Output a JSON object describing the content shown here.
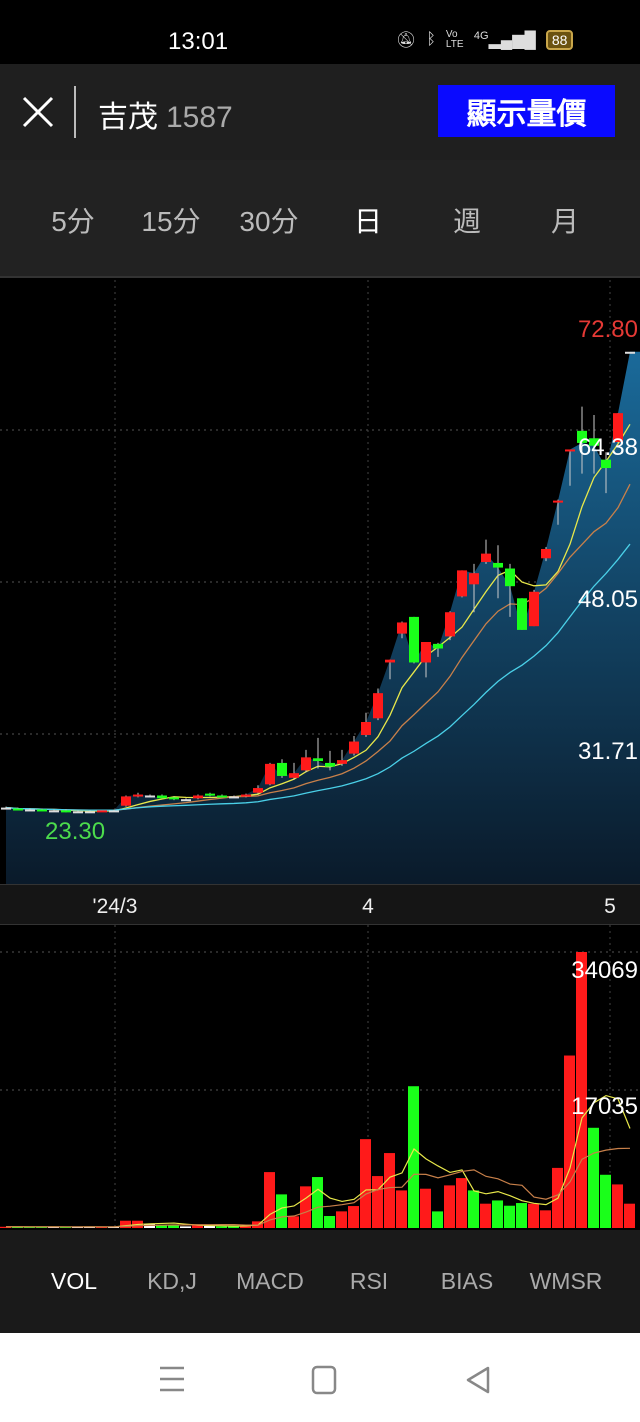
{
  "status_bar": {
    "time": "13:01",
    "battery": "88",
    "network": "4G",
    "volte": "Vo LTE"
  },
  "header": {
    "stock_name": "吉茂",
    "stock_code": "1587",
    "show_button": "顯示量價"
  },
  "periods": {
    "items": [
      "5分",
      "15分",
      "30分",
      "日",
      "週",
      "月"
    ],
    "selected": "日"
  },
  "price_labels": {
    "high": "72.80",
    "grid_top": "64.38",
    "grid_mid": "48.05",
    "grid_low": "31.71",
    "low": "23.30"
  },
  "date_labels": [
    "'24/3",
    "4",
    "5"
  ],
  "volume_labels": {
    "max": "34069",
    "mid": "17035"
  },
  "indicator_tabs": {
    "items": [
      "VOL",
      "KD,J",
      "MACD",
      "RSI",
      "BIAS",
      "WMSR"
    ],
    "selected": "VOL"
  },
  "colors": {
    "up": "#ff1a1a",
    "down": "#1aff1a",
    "neutral": "#ffffff",
    "ma5": "#e8e84a",
    "ma10": "#c8804a",
    "ma20": "#4ad0e8",
    "button": "#0a0aff",
    "high_label": "#e53935",
    "low_label": "#4cdc4c"
  },
  "chart_data": [
    {
      "type": "candlestick",
      "title": "",
      "ylim": [
        23.3,
        72.8
      ],
      "y_ticks": [
        31.71,
        48.05,
        64.38
      ],
      "x_ticks": [
        "'24/3",
        "4",
        "5"
      ],
      "moving_averages": [
        "ma5",
        "ma10",
        "ma20"
      ],
      "ohlc": [
        [
          23.8,
          23.9,
          23.7,
          23.8
        ],
        [
          23.7,
          23.8,
          23.6,
          23.6
        ],
        [
          23.6,
          23.7,
          23.5,
          23.6
        ],
        [
          23.6,
          23.7,
          23.5,
          23.5
        ],
        [
          23.5,
          23.6,
          23.4,
          23.5
        ],
        [
          23.5,
          23.6,
          23.3,
          23.4
        ],
        [
          23.4,
          23.5,
          23.3,
          23.4
        ],
        [
          23.4,
          23.5,
          23.3,
          23.4
        ],
        [
          23.4,
          23.5,
          23.4,
          23.5
        ],
        [
          23.5,
          23.6,
          23.4,
          23.5
        ],
        [
          24.0,
          25.1,
          23.9,
          25.0
        ],
        [
          25.0,
          25.4,
          24.9,
          25.2
        ],
        [
          25.1,
          25.2,
          25.0,
          25.1
        ],
        [
          25.1,
          25.2,
          24.8,
          24.8
        ],
        [
          24.9,
          25.0,
          24.6,
          24.7
        ],
        [
          24.7,
          24.8,
          24.6,
          24.7
        ],
        [
          24.8,
          25.2,
          24.7,
          25.1
        ],
        [
          25.3,
          25.4,
          25.0,
          25.1
        ],
        [
          25.1,
          25.2,
          24.9,
          25.0
        ],
        [
          25.0,
          25.1,
          24.9,
          25.0
        ],
        [
          25.0,
          25.3,
          24.9,
          25.2
        ],
        [
          25.4,
          26.2,
          25.3,
          25.9
        ],
        [
          26.3,
          28.6,
          26.2,
          28.5
        ],
        [
          28.6,
          29.0,
          27.0,
          27.2
        ],
        [
          27.0,
          28.6,
          26.8,
          27.5
        ],
        [
          27.8,
          30.0,
          27.6,
          29.2
        ],
        [
          29.1,
          31.3,
          28.0,
          28.8
        ],
        [
          28.6,
          29.9,
          27.8,
          28.2
        ],
        [
          28.5,
          30.0,
          28.3,
          28.9
        ],
        [
          29.6,
          31.5,
          29.4,
          30.9
        ],
        [
          31.6,
          34.0,
          31.4,
          33.0
        ],
        [
          33.4,
          36.6,
          33.2,
          36.1
        ],
        [
          39.4,
          39.7,
          37.6,
          39.7
        ],
        [
          42.5,
          43.8,
          42.0,
          43.7
        ],
        [
          44.3,
          44.3,
          39.3,
          39.4
        ],
        [
          39.4,
          41.6,
          37.8,
          41.6
        ],
        [
          41.4,
          41.5,
          40.0,
          40.9
        ],
        [
          42.2,
          44.9,
          41.8,
          44.8
        ],
        [
          46.5,
          49.3,
          46.4,
          49.3
        ],
        [
          47.8,
          50.0,
          44.8,
          49.0
        ],
        [
          50.2,
          52.6,
          50.0,
          51.1
        ],
        [
          50.1,
          52.0,
          46.3,
          49.6
        ],
        [
          49.5,
          50.0,
          44.3,
          47.6
        ],
        [
          46.3,
          46.3,
          42.9,
          42.9
        ],
        [
          43.3,
          47.2,
          43.3,
          47.0
        ],
        [
          50.6,
          51.8,
          50.3,
          51.6
        ],
        [
          56.7,
          56.9,
          54.2,
          56.8
        ],
        [
          62.2,
          62.3,
          58.4,
          62.3
        ],
        [
          64.3,
          66.9,
          59.7,
          63.0
        ],
        [
          63.5,
          66.0,
          59.7,
          62.7
        ],
        [
          61.2,
          62.0,
          57.6,
          60.3
        ],
        [
          63.1,
          66.2,
          63.0,
          66.2
        ],
        [
          72.8,
          72.8,
          72.8,
          72.8
        ]
      ]
    },
    {
      "type": "bar",
      "title": "",
      "ylim": [
        0,
        34069
      ],
      "y_ticks": [
        17035,
        34069
      ],
      "moving_averages": [
        "ma5",
        "ma10"
      ],
      "volumes": [
        150,
        150,
        120,
        150,
        130,
        120,
        150,
        130,
        120,
        150,
        900,
        900,
        500,
        370,
        370,
        200,
        330,
        250,
        200,
        200,
        300,
        820,
        6900,
        4150,
        1440,
        5140,
        6290,
        1480,
        2055,
        2710,
        10970,
        6410,
        9250,
        4640,
        17500,
        4850,
        2050,
        5260,
        6160,
        4640,
        3000,
        3400,
        2750,
        3080,
        3000,
        2180,
        7420,
        21290,
        34069,
        12370,
        6570,
        5380,
        3000
      ],
      "directions": [
        "u",
        "d",
        "d",
        "d",
        "n",
        "d",
        "n",
        "n",
        "u",
        "n",
        "u",
        "u",
        "n",
        "d",
        "d",
        "n",
        "u",
        "n",
        "d",
        "d",
        "u",
        "u",
        "u",
        "d",
        "u",
        "u",
        "d",
        "d",
        "u",
        "u",
        "u",
        "u",
        "u",
        "u",
        "d",
        "u",
        "d",
        "u",
        "u",
        "d",
        "u",
        "d",
        "d",
        "d",
        "u",
        "u",
        "u",
        "u",
        "u",
        "d",
        "d",
        "u",
        "u"
      ]
    }
  ]
}
